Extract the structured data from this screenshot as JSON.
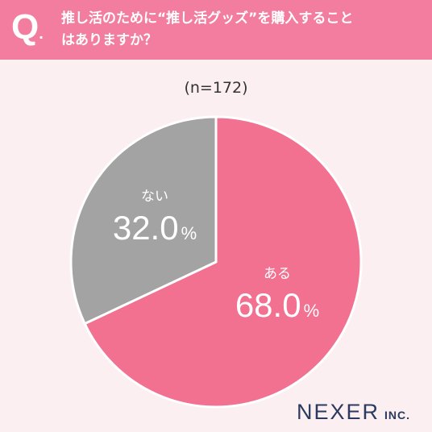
{
  "header": {
    "q_mark": "Q",
    "q_dot": ".",
    "question_line1": "推し活のために“推し活グッズ”を購入すること",
    "question_line2": "はありますか？"
  },
  "sample_label": "(n=172)",
  "logo": {
    "name": "NEXER",
    "suffix": "INC."
  },
  "colors": {
    "header": "#f27d9f",
    "yes": "#f27090",
    "no": "#a3a3a3",
    "background": "#fbeff2"
  },
  "chart_data": {
    "type": "pie",
    "title": "推し活のために“推し活グッズ”を購入することはありますか？",
    "n_label": "(n=172)",
    "slices": [
      {
        "label": "ある",
        "value": 68.0,
        "value_text": "68.0",
        "unit": "%",
        "color": "#f27090"
      },
      {
        "label": "ない",
        "value": 32.0,
        "value_text": "32.0",
        "unit": "%",
        "color": "#a3a3a3"
      }
    ]
  }
}
